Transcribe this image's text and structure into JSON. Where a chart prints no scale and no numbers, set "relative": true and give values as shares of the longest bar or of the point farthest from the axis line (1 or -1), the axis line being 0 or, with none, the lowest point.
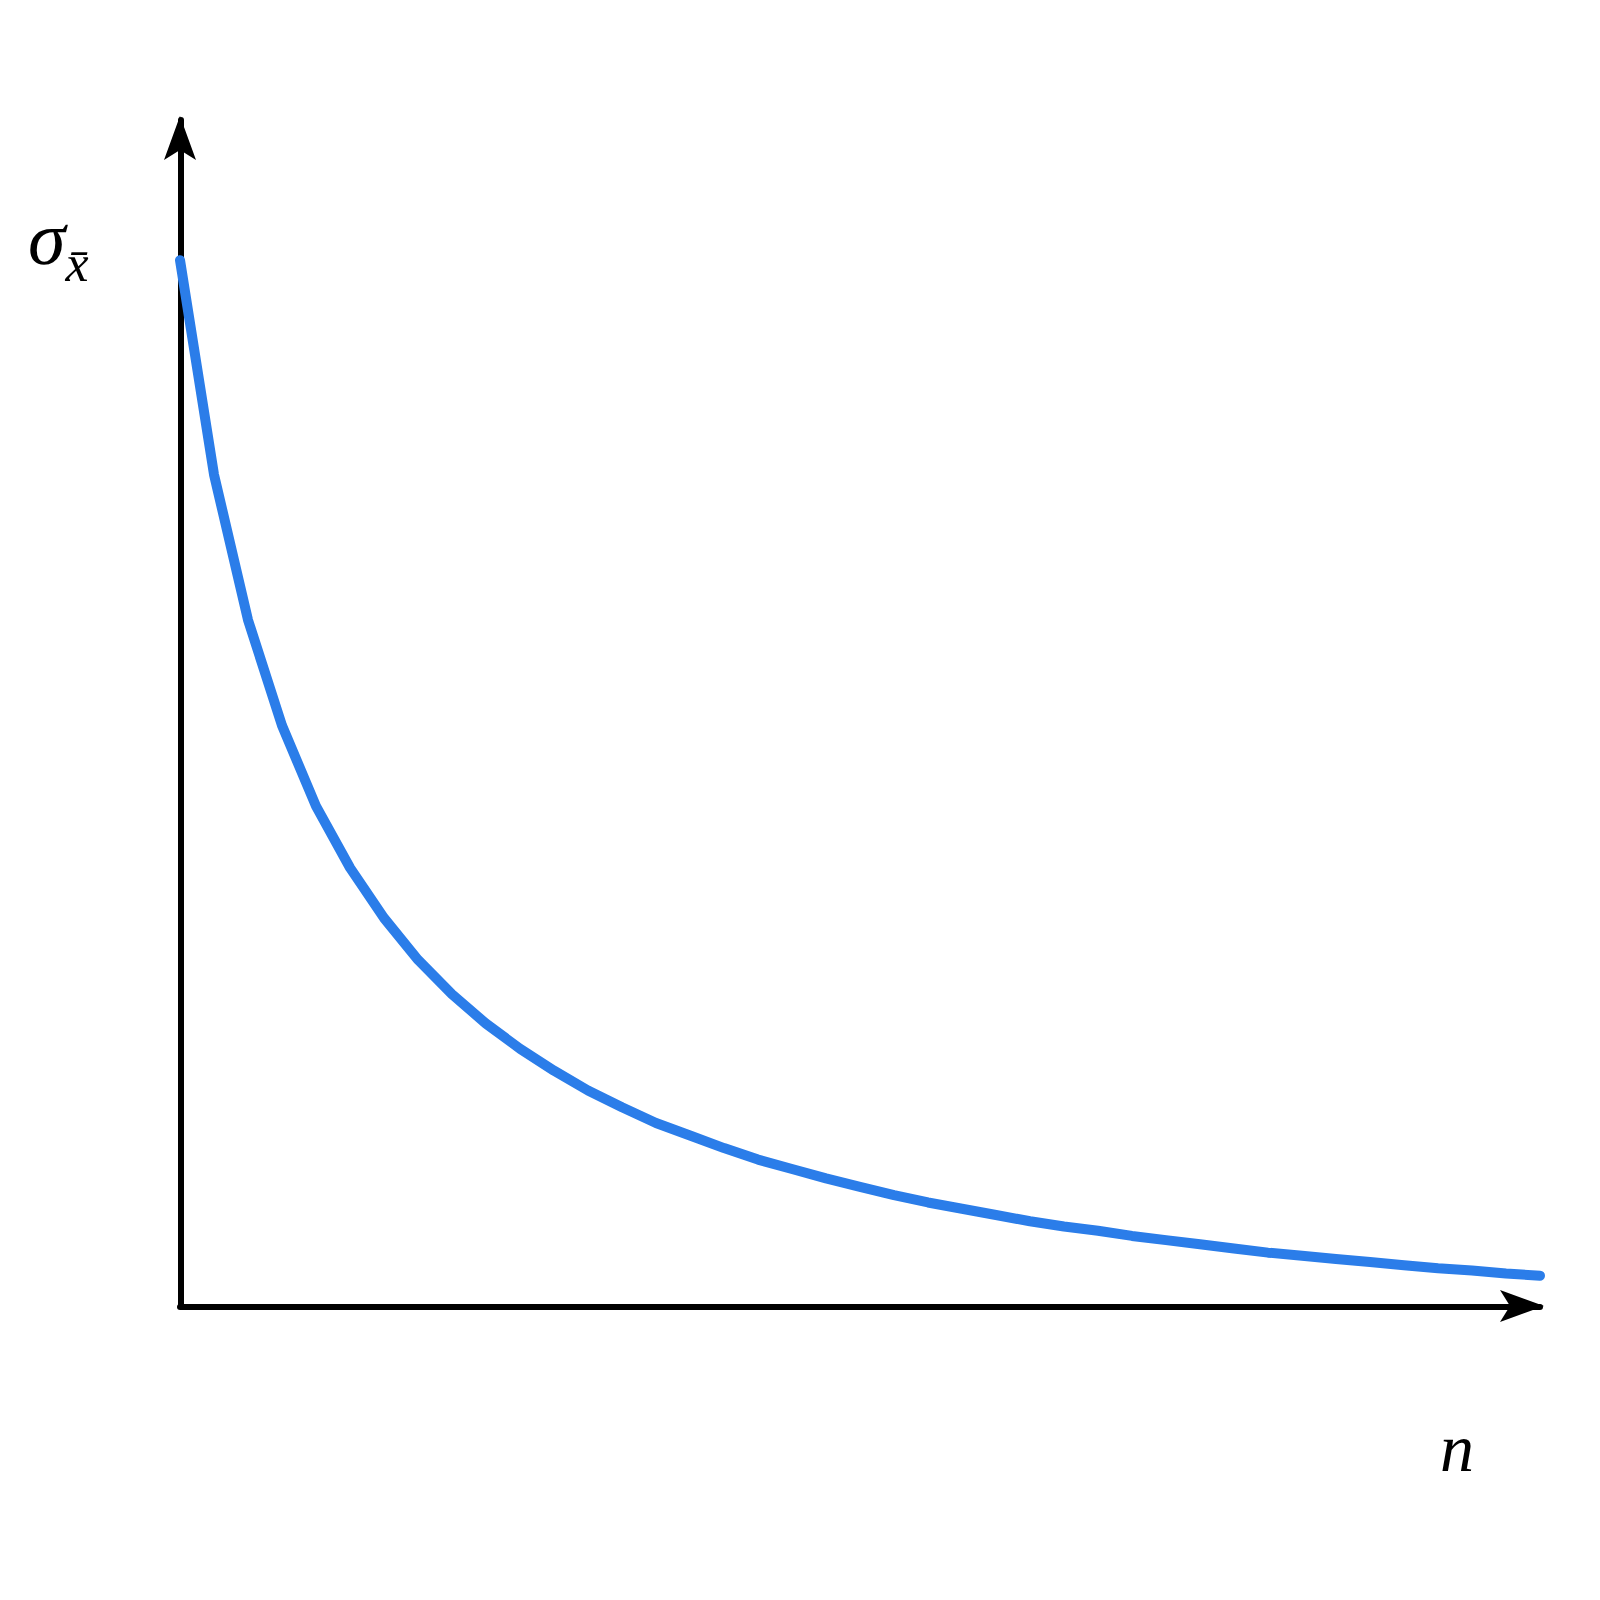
{
  "chart_data": {
    "type": "line",
    "relative": true,
    "xlabel": "n",
    "ylabel": "σ$_{x̄}$",
    "color": "#2b7de9",
    "marker": "none",
    "line_style": "solid",
    "grid": false,
    "categories": [
      null,
      null,
      null,
      null,
      null,
      null,
      null,
      null,
      null,
      null,
      null,
      null,
      null,
      null,
      null,
      null,
      null,
      null,
      null,
      null,
      null,
      null,
      null,
      null,
      null,
      null,
      null,
      null,
      null,
      null,
      null,
      null,
      null,
      null,
      null,
      null,
      null,
      null,
      null,
      null,
      null
    ],
    "values": [
      1.0,
      0.795,
      0.656,
      0.555,
      0.478,
      0.419,
      0.371,
      0.331,
      0.298,
      0.27,
      0.246,
      0.225,
      0.206,
      0.19,
      0.175,
      0.163,
      0.151,
      0.14,
      0.131,
      0.122,
      0.114,
      0.106,
      0.099,
      0.093,
      0.087,
      0.081,
      0.076,
      0.072,
      0.067,
      0.063,
      0.059,
      0.055,
      0.051,
      0.048,
      0.045,
      0.042,
      0.039,
      0.036,
      0.034,
      0.031,
      0.029
    ]
  }
}
